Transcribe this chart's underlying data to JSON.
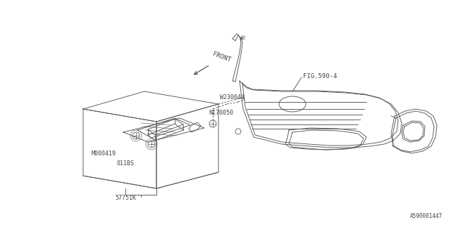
{
  "background_color": "#ffffff",
  "fig_width": 6.4,
  "fig_height": 3.2,
  "dpi": 100,
  "line_color": "#555555",
  "text_color": "#444444",
  "fig_label": "A590001447",
  "fig_ref": "FIG.590-4",
  "front_label": "FRONT"
}
